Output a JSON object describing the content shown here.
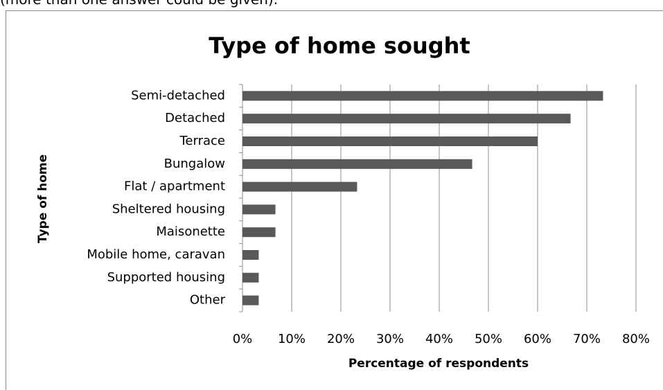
{
  "caption": "(more than one answer could be given).",
  "chart_data": {
    "type": "hbar",
    "title": "Type of home sought",
    "x_label": "Percentage of respondents",
    "y_label": "Type of home",
    "categories": [
      "Semi-detached",
      "Detached",
      "Terrace",
      "Bungalow",
      "Flat / apartment",
      "Sheltered housing",
      "Maisonette",
      "Mobile home, caravan",
      "Supported housing",
      "Other"
    ],
    "values": [
      73.3,
      66.7,
      60,
      46.7,
      23.3,
      6.7,
      6.7,
      3.3,
      3.3,
      3.3
    ],
    "color": "#595959",
    "xlim": [
      0,
      80
    ],
    "xticks": [
      {
        "value": 0,
        "label": "0%"
      },
      {
        "value": 10,
        "label": "10%"
      },
      {
        "value": 20,
        "label": "20%"
      },
      {
        "value": 30,
        "label": "30%"
      },
      {
        "value": 40,
        "label": "40%"
      },
      {
        "value": 50,
        "label": "50%"
      },
      {
        "value": 60,
        "label": "60%"
      },
      {
        "value": 70,
        "label": "70%"
      },
      {
        "value": 80,
        "label": "80%"
      }
    ],
    "grid": true
  }
}
